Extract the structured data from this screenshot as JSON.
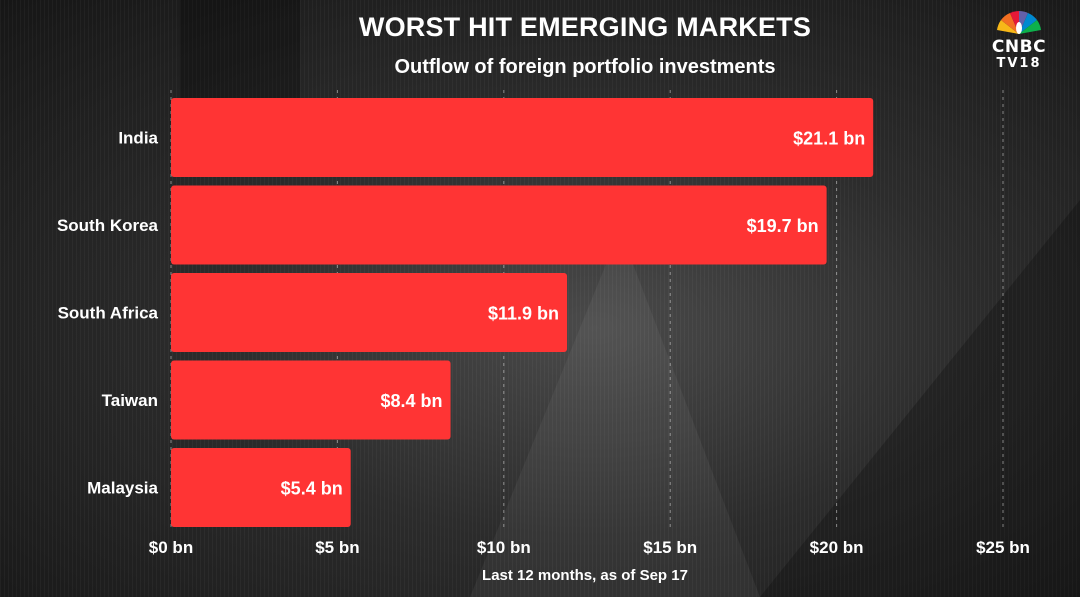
{
  "chart_data": {
    "type": "bar",
    "orientation": "horizontal",
    "title": "WORST HIT EMERGING MARKETS",
    "subtitle": "Outflow of foreign portfolio investments",
    "categories": [
      "India",
      "South Korea",
      "South Africa",
      "Taiwan",
      "Malaysia"
    ],
    "values": [
      21.1,
      19.7,
      11.9,
      8.4,
      5.4
    ],
    "data_labels": [
      "$21.1 bn",
      "$19.7 bn",
      "$11.9 bn",
      "$8.4 bn",
      "$5.4 bn"
    ],
    "x_ticks": [
      0,
      5,
      10,
      15,
      20,
      25
    ],
    "x_tick_labels": [
      "$0 bn",
      "$5 bn",
      "$10 bn",
      "$15 bn",
      "$20 bn",
      "$25 bn"
    ],
    "xlim": [
      0,
      25
    ],
    "grid": "vertical dashed",
    "bar_color": "#ff3434",
    "footnote": "Last 12 months, as of Sep 17"
  },
  "logo": {
    "name": "CNBC",
    "sub": "TV18",
    "icon": "peacock-icon"
  }
}
